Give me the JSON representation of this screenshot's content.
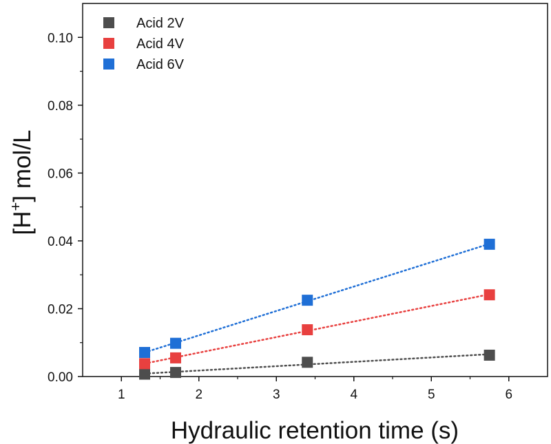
{
  "chart_data": {
    "type": "scatter",
    "xlabel": "Hydraulic retention time (s)",
    "ylabel": {
      "prefix": "[H",
      "superscript": "+",
      "suffix": "] mol/L"
    },
    "xlim": [
      0.5,
      6.5
    ],
    "ylim": [
      0.0,
      0.11
    ],
    "xticks": [
      "1",
      "2",
      "3",
      "4",
      "5",
      "6"
    ],
    "yticks": [
      "0.00",
      "0.02",
      "0.04",
      "0.06",
      "0.08",
      "0.10"
    ],
    "legend_position": "top-left",
    "grid": false,
    "x": [
      1.3,
      1.7,
      3.4,
      5.75
    ],
    "series": [
      {
        "name": "Acid 2V",
        "color": "#4d4d4d",
        "values": [
          0.0007,
          0.0012,
          0.0042,
          0.0063
        ],
        "trendline": "dotted-linear"
      },
      {
        "name": "Acid 4V",
        "color": "#e8403f",
        "values": [
          0.0038,
          0.0055,
          0.0138,
          0.0241
        ],
        "trendline": "dotted-linear"
      },
      {
        "name": "Acid 6V",
        "color": "#1f6fd6",
        "values": [
          0.0071,
          0.0098,
          0.0225,
          0.039
        ],
        "trendline": "dotted-linear"
      }
    ]
  }
}
